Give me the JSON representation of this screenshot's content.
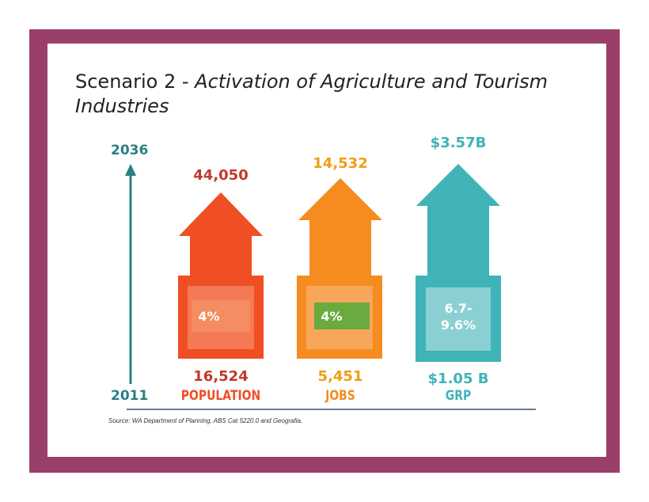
{
  "title": {
    "prefix": "Scenario 2 - ",
    "emphasis": "Activation of Agriculture and Tourism Industries"
  },
  "timeline": {
    "end_year": "2036",
    "start_year": "2011"
  },
  "indicators": [
    {
      "name": "POPULATION",
      "value_2011": "16,524",
      "value_2036": "44,050",
      "growth": "4%",
      "color": "#f04e23"
    },
    {
      "name": "JOBS",
      "value_2011": "5,451",
      "value_2036": "14,532",
      "growth": "4%",
      "color": "#f68b1f"
    },
    {
      "name": "GRP",
      "value_2011": "$1.05 B",
      "value_2036": "$3.57B",
      "growth": "6.7-\n9.6%",
      "color": "#3fb3b8"
    }
  ],
  "source": "Source: WA Department of Planning, ABS Cat 5220.0 and Geografia."
}
